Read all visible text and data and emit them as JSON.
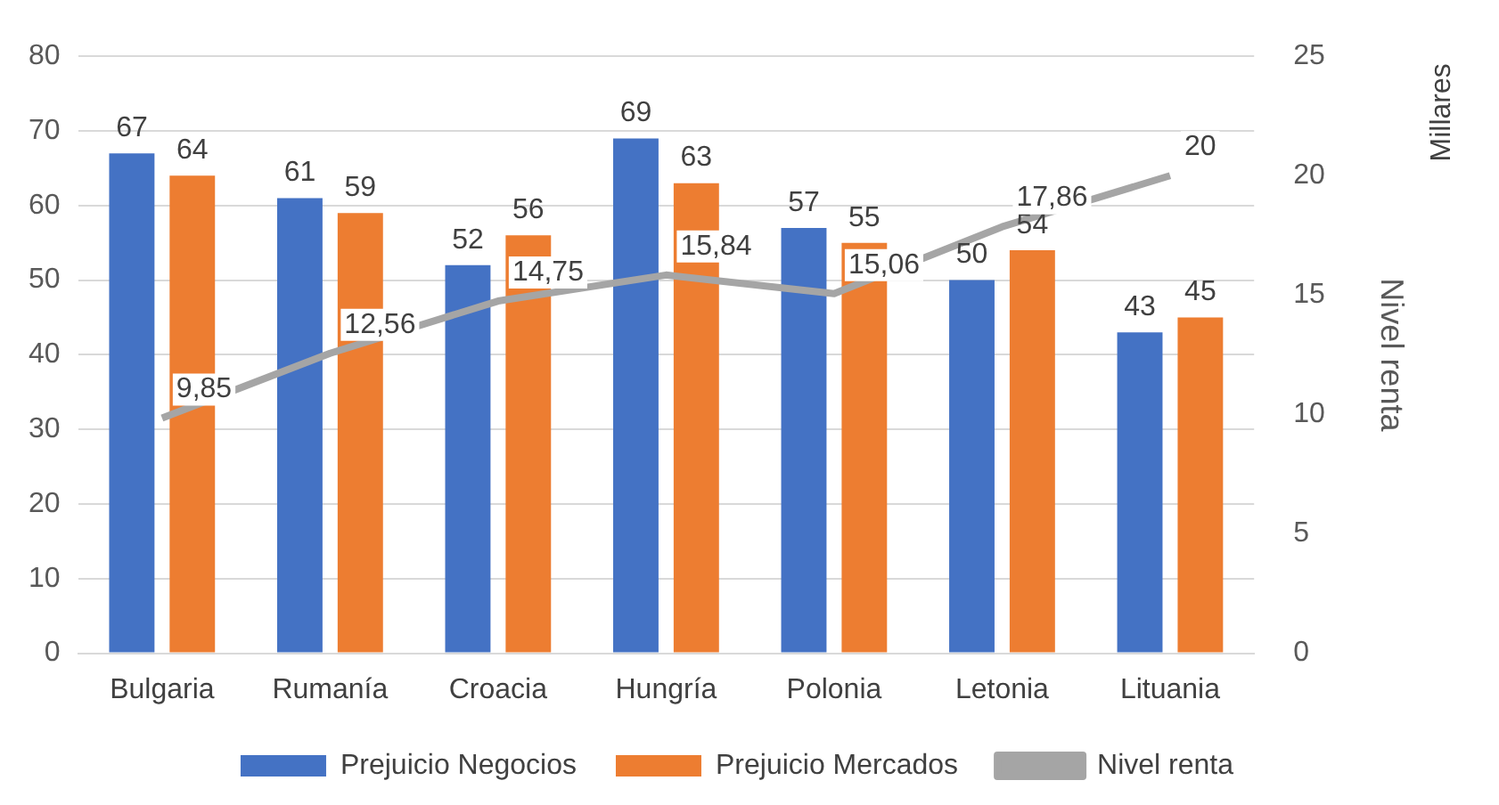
{
  "chart_data": {
    "type": "bar",
    "categories": [
      "Bulgaria",
      "Rumanía",
      "Croacia",
      "Hungría",
      "Polonia",
      "Letonia",
      "Lituania"
    ],
    "series": [
      {
        "name": "Prejuicio Negocios",
        "color": "#4472c4",
        "values": [
          67,
          61,
          52,
          69,
          57,
          50,
          43
        ],
        "value_labels": [
          "67",
          "61",
          "52",
          "69",
          "57",
          "50",
          "43"
        ]
      },
      {
        "name": "Prejuicio Mercados",
        "color": "#ed7d31",
        "values": [
          64,
          59,
          56,
          63,
          55,
          54,
          45
        ],
        "value_labels": [
          "64",
          "59",
          "56",
          "63",
          "55",
          "54",
          "45"
        ]
      },
      {
        "name": "Nivel renta",
        "type": "line",
        "axis": "y2",
        "color": "#a5a5a5",
        "values": [
          9.85,
          12.56,
          14.75,
          15.84,
          15.06,
          17.86,
          20
        ],
        "value_labels": [
          "9,85",
          "12,56",
          "14,75",
          "15,84",
          "15,06",
          "17,86",
          "20"
        ]
      }
    ],
    "ylim": [
      0,
      80
    ],
    "yticks": [
      0,
      10,
      20,
      30,
      40,
      50,
      60,
      70,
      80
    ],
    "y2lim": [
      0,
      25
    ],
    "y2ticks": [
      0,
      5,
      10,
      15,
      20,
      25
    ],
    "y2label": "Nivel renta",
    "annotations": [
      "Millares"
    ],
    "grid": "y",
    "legend": "bottom",
    "marker": "none"
  }
}
